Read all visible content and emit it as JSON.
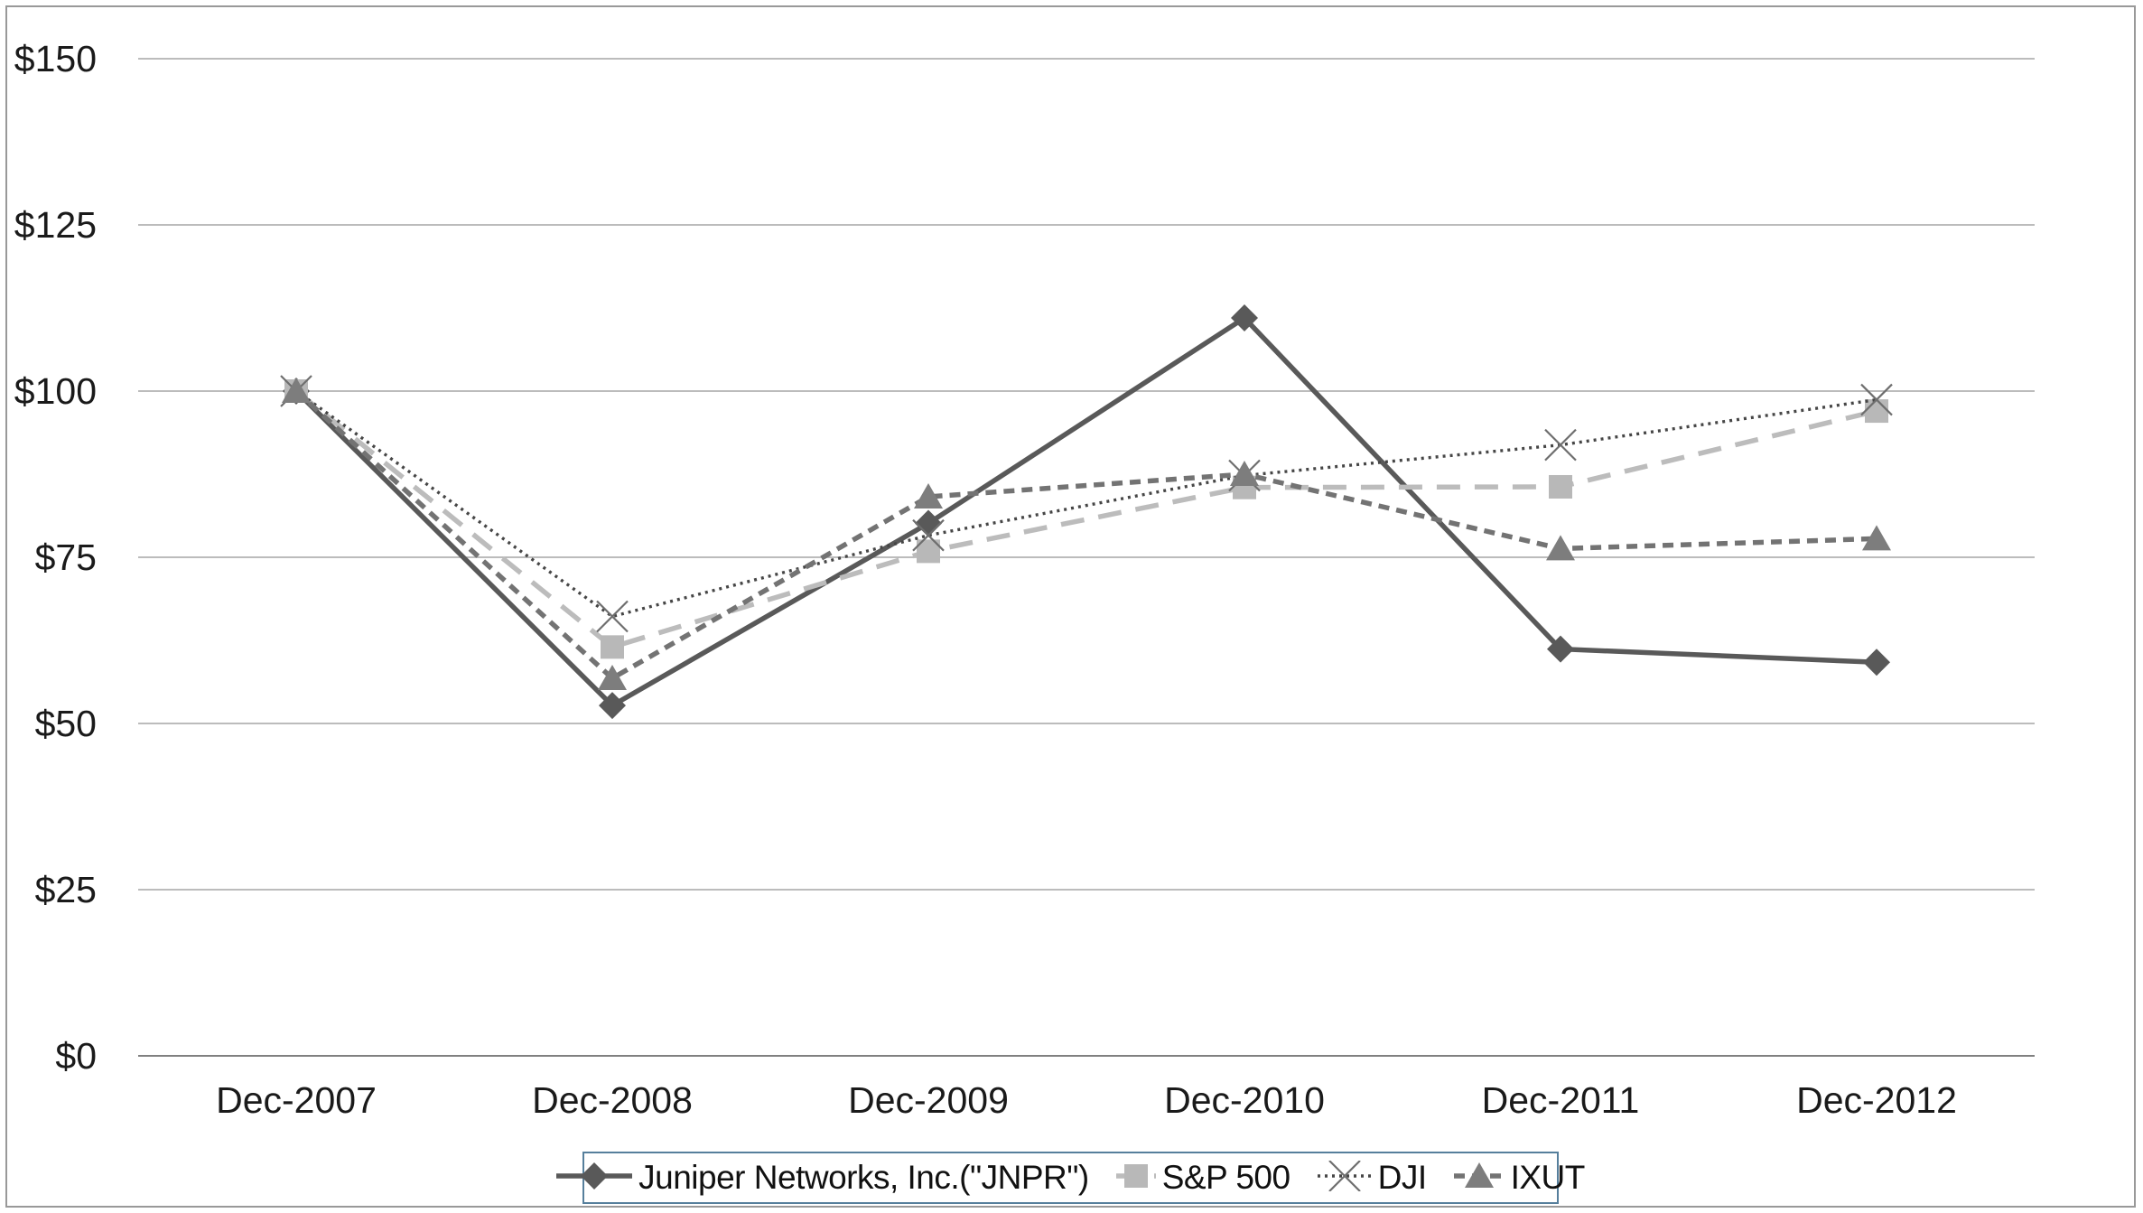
{
  "chart": {
    "background_color": "#ffffff",
    "frame_color": "#999999",
    "gridline_color": "#a6a6a6",
    "axis_line_color": "#808080",
    "text_color": "#1a1a1a",
    "legend_border_color": "#567f9c"
  },
  "chart_data": {
    "type": "line",
    "title": "",
    "xlabel": "",
    "ylabel": "",
    "categories": [
      "Dec-2007",
      "Dec-2008",
      "Dec-2009",
      "Dec-2010",
      "Dec-2011",
      "Dec-2012"
    ],
    "series": [
      {
        "name": "Juniper Networks, Inc.(\"JNPR\")",
        "values": [
          100,
          52.7,
          80.1,
          111.0,
          61.2,
          59.2
        ],
        "color": "#595959",
        "line_style": "solid",
        "line_width": 5.5,
        "marker": "diamond",
        "marker_color": "#595959"
      },
      {
        "name": "S&P 500",
        "values": [
          100,
          61.5,
          75.9,
          85.5,
          85.6,
          97.0
        ],
        "color": "#bcbcbc",
        "line_style": "long-dash",
        "line_width": 5.5,
        "marker": "square",
        "marker_color": "#b8b8b8"
      },
      {
        "name": "DJI",
        "values": [
          100,
          66.1,
          78.3,
          87.3,
          91.9,
          98.7
        ],
        "color": "#464646",
        "line_style": "dot",
        "line_width": 3.4,
        "marker": "x",
        "marker_color": "#6e6e6e"
      },
      {
        "name": "IXUT",
        "values": [
          100,
          56.8,
          84.1,
          87.5,
          76.3,
          77.8
        ],
        "color": "#737373",
        "line_style": "short-dash",
        "line_width": 5.5,
        "marker": "triangle",
        "marker_color": "#7d7d7d"
      }
    ],
    "ylim": [
      0,
      150
    ],
    "y_step": 25,
    "y_tick_prefix": "$",
    "y_tick_labels": [
      "$0",
      "$25",
      "$50",
      "$75",
      "$100",
      "$125",
      "$150"
    ],
    "grid": true,
    "legend_position": "bottom"
  }
}
